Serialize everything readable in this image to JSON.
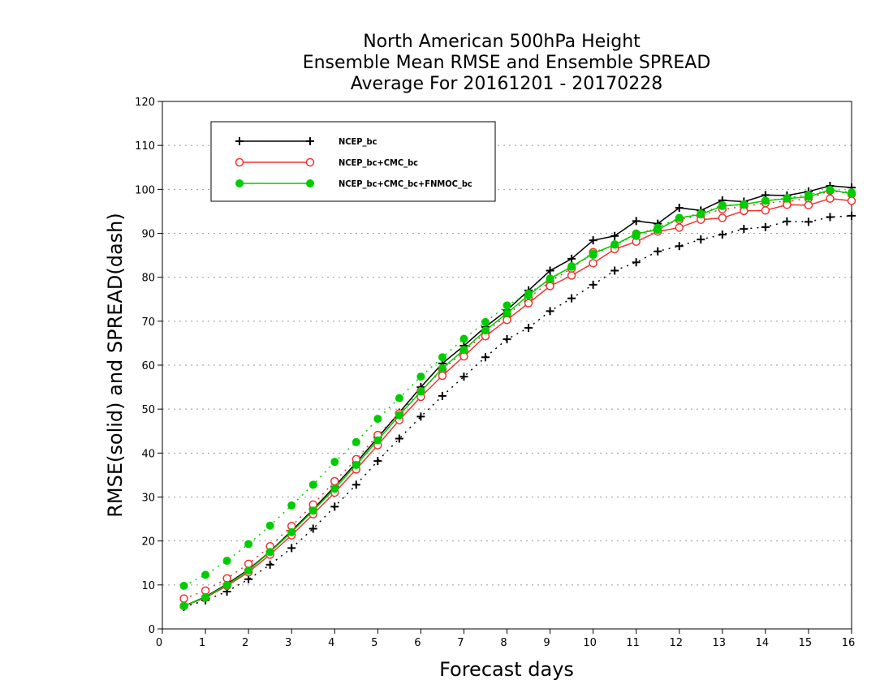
{
  "chart_data": {
    "type": "line",
    "title": [
      "North American 500hPa Height",
      "Ensemble Mean RMSE and Ensemble SPREAD",
      "Average For 20161201 - 20170228"
    ],
    "xlabel": "Forecast days",
    "ylabel": "RMSE(solid) and SPREAD(dash)",
    "xlim": [
      0,
      16
    ],
    "ylim": [
      0,
      120
    ],
    "x_ticks": [
      "0",
      "1",
      "2",
      "3",
      "4",
      "5",
      "6",
      "7",
      "8",
      "9",
      "10",
      "11",
      "12",
      "13",
      "14",
      "15",
      "16"
    ],
    "y_ticks": [
      "0",
      "10",
      "20",
      "30",
      "40",
      "50",
      "60",
      "70",
      "80",
      "90",
      "100",
      "110",
      "120"
    ],
    "grid": "horizontal dotted",
    "legend_position": "top-left",
    "x": [
      0.5,
      1,
      1.5,
      2,
      2.5,
      3,
      3.5,
      4,
      4.5,
      5,
      5.5,
      6,
      6.5,
      7,
      7.5,
      8,
      8.5,
      9,
      9.5,
      10,
      10.5,
      11,
      11.5,
      12,
      12.5,
      13,
      13.5,
      14,
      14.5,
      15,
      15.5,
      16
    ],
    "series": [
      {
        "name": "NCEP_bc",
        "color": "#000000",
        "marker": "plus",
        "rmse": [
          5.2,
          7.3,
          10.2,
          13.5,
          17.6,
          22.3,
          27.2,
          32.4,
          37.8,
          43.5,
          49.2,
          55.0,
          60.4,
          64.4,
          68.7,
          72.5,
          77.0,
          81.5,
          84.2,
          88.4,
          89.4,
          92.8,
          92.2,
          95.8,
          95.2,
          97.5,
          97.2,
          98.7,
          98.6,
          99.5,
          100.8,
          100.4
        ],
        "spread": [
          5.0,
          6.5,
          8.5,
          11.3,
          14.6,
          18.4,
          22.8,
          27.8,
          32.8,
          38.2,
          43.3,
          48.3,
          53.0,
          57.4,
          61.8,
          65.9,
          68.5,
          72.3,
          75.2,
          78.3,
          81.5,
          83.4,
          85.9,
          87.1,
          88.6,
          89.7,
          91.0,
          91.4,
          92.7,
          92.6,
          93.7,
          94.0
        ]
      },
      {
        "name": "NCEP_bc+CMC_bc",
        "color": "#ee3333",
        "marker": "open-circle",
        "rmse": [
          5.2,
          7.1,
          9.8,
          12.9,
          16.9,
          21.3,
          26.1,
          31.0,
          36.3,
          41.8,
          47.5,
          52.8,
          57.6,
          62.0,
          66.6,
          70.3,
          74.1,
          78.0,
          80.4,
          83.2,
          86.4,
          88.1,
          90.4,
          91.3,
          93.1,
          93.5,
          95.1,
          95.2,
          96.5,
          96.4,
          97.9,
          97.4
        ],
        "spread": [
          6.9,
          8.7,
          11.5,
          14.8,
          18.8,
          23.4,
          28.3,
          33.6,
          38.6,
          44.1,
          49.0,
          54.1,
          58.9,
          63.1,
          67.4,
          71.4,
          75.3,
          79.0,
          82.0,
          85.7,
          87.2,
          89.9,
          91.1,
          93.1,
          94.1,
          95.5,
          96.1,
          96.9,
          97.3,
          97.9,
          99.7,
          98.9
        ]
      },
      {
        "name": "NCEP_bc+CMC_bc+FNMOC_bc",
        "color": "#00cc00",
        "marker": "filled-circle",
        "rmse": [
          5.2,
          7.2,
          10.0,
          13.3,
          17.5,
          22.0,
          26.9,
          31.9,
          37.3,
          42.9,
          48.6,
          54.0,
          59.3,
          63.5,
          67.9,
          71.8,
          75.9,
          79.7,
          82.4,
          85.4,
          87.4,
          89.9,
          90.8,
          93.5,
          94.3,
          96.2,
          96.6,
          97.4,
          97.9,
          98.3,
          99.9,
          99.0
        ],
        "spread": [
          9.8,
          12.3,
          15.5,
          19.3,
          23.5,
          28.1,
          32.8,
          38.0,
          42.5,
          47.8,
          52.5,
          57.4,
          61.8,
          66.0,
          69.8,
          73.6,
          76.3,
          79.6,
          82.5,
          85.1,
          87.5,
          89.4,
          91.3,
          93.5,
          94.5,
          96.4,
          96.5,
          97.4,
          98.0,
          98.8,
          99.8,
          99.3
        ]
      }
    ]
  }
}
